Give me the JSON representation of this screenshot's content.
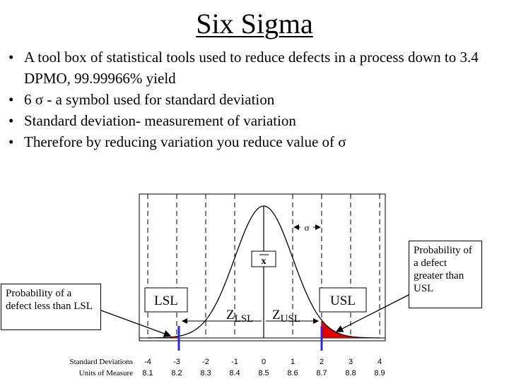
{
  "slide": {
    "title": "Six Sigma",
    "bullets": [
      {
        "marker": "•",
        "text": "A tool box of statistical tools used to reduce defects in a process down to 3.4 DPMO, 99.99966% yield"
      },
      {
        "marker": "•",
        "text": "6 σ - a symbol used for standard deviation"
      },
      {
        "marker": "•",
        "text": "Standard deviation- measurement of variation"
      },
      {
        "marker": "•",
        "text": "Therefore by reducing variation you reduce value of σ"
      }
    ]
  },
  "figure": {
    "sigma_label": "σ",
    "mean_label": "x",
    "lsl_label": "LSL",
    "usl_label": "USL",
    "z_lsl_main": "Z",
    "z_lsl_sub": "LSL",
    "z_usl_main": "Z",
    "z_usl_sub": "USL",
    "row_sd_label": "Standard Deviations",
    "row_units_label": "Units of Measure",
    "sd_ticks": [
      "-4",
      "-3",
      "-2",
      "-1",
      "0",
      "1",
      "2",
      "3",
      "4"
    ],
    "unit_ticks": [
      "8.1",
      "8.2",
      "8.3",
      "8.4",
      "8.5",
      "8.6",
      "8.7",
      "8.8",
      "8.9"
    ],
    "callout_left": "Probability of a defect less than LSL",
    "callout_right": "Probability of a defect greater than USL",
    "colors": {
      "tail_fill": "#e00000",
      "spec_line": "#2b2bd0",
      "curve": "#000000"
    }
  }
}
